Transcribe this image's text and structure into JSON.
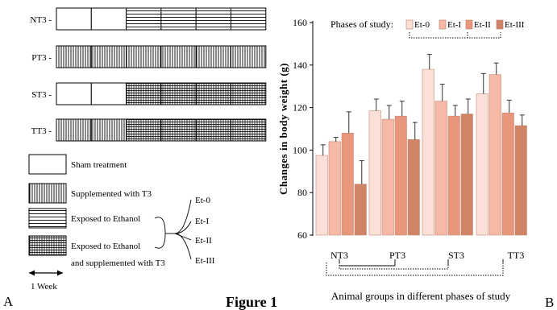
{
  "panel_a": {
    "label": "A",
    "rows": [
      {
        "name": "NT3 -",
        "segments": [
          "sham",
          "sham",
          "ethanol",
          "ethanol",
          "ethanol",
          "ethanol"
        ]
      },
      {
        "name": "PT3 -",
        "segments": [
          "t3",
          "t3",
          "t3",
          "t3",
          "t3",
          "t3"
        ]
      },
      {
        "name": "ST3 -",
        "segments": [
          "sham",
          "sham",
          "ethanol_t3",
          "ethanol_t3",
          "ethanol_t3",
          "ethanol_t3"
        ]
      },
      {
        "name": "TT3 -",
        "segments": [
          "t3",
          "t3",
          "ethanol_t3",
          "ethanol_t3",
          "ethanol_t3",
          "ethanol_t3"
        ]
      }
    ],
    "legend": [
      {
        "pattern": "sham",
        "label": "Sham treatment"
      },
      {
        "pattern": "t3",
        "label": "Supplemented with T3"
      },
      {
        "pattern": "ethanol",
        "label": "Exposed to Ethanol"
      },
      {
        "pattern": "ethanol_t3",
        "label": "Exposed to Ethanol"
      }
    ],
    "legend_extra": "and supplemented with T3",
    "phases": [
      "Et-0",
      "Et-I",
      "Et-II",
      "Et-III"
    ],
    "week_label": "1 Week"
  },
  "figure_label": "Figure 1",
  "chart_data": {
    "type": "bar",
    "panel_label": "B",
    "ylabel": "Changes in body weight (g)",
    "xlabel": "Animal groups in different phases of study",
    "ylim": [
      60,
      160
    ],
    "yticks": [
      60,
      80,
      100,
      120,
      140,
      160
    ],
    "categories": [
      "NT3",
      "PT3",
      "ST3",
      "TT3"
    ],
    "legend_title": "Phases of study:",
    "legend_position": "top",
    "series": [
      {
        "name": "Et-0",
        "color": "#fbe0d8",
        "values": [
          97.5,
          118.5,
          138,
          126.5
        ],
        "errors": [
          5,
          5.5,
          7,
          9.5
        ]
      },
      {
        "name": "Et-I",
        "color": "#f5b9a5",
        "values": [
          104,
          114.5,
          123,
          135.5
        ],
        "errors": [
          2,
          6.5,
          8,
          5.5
        ]
      },
      {
        "name": "Et-II",
        "color": "#e8967c",
        "values": [
          108,
          116,
          116,
          117.5
        ],
        "errors": [
          10,
          7,
          5,
          6
        ]
      },
      {
        "name": "Et-III",
        "color": "#cf8467",
        "values": [
          84,
          105,
          117,
          111.5
        ],
        "errors": [
          11,
          8,
          7,
          5
        ]
      }
    ]
  }
}
